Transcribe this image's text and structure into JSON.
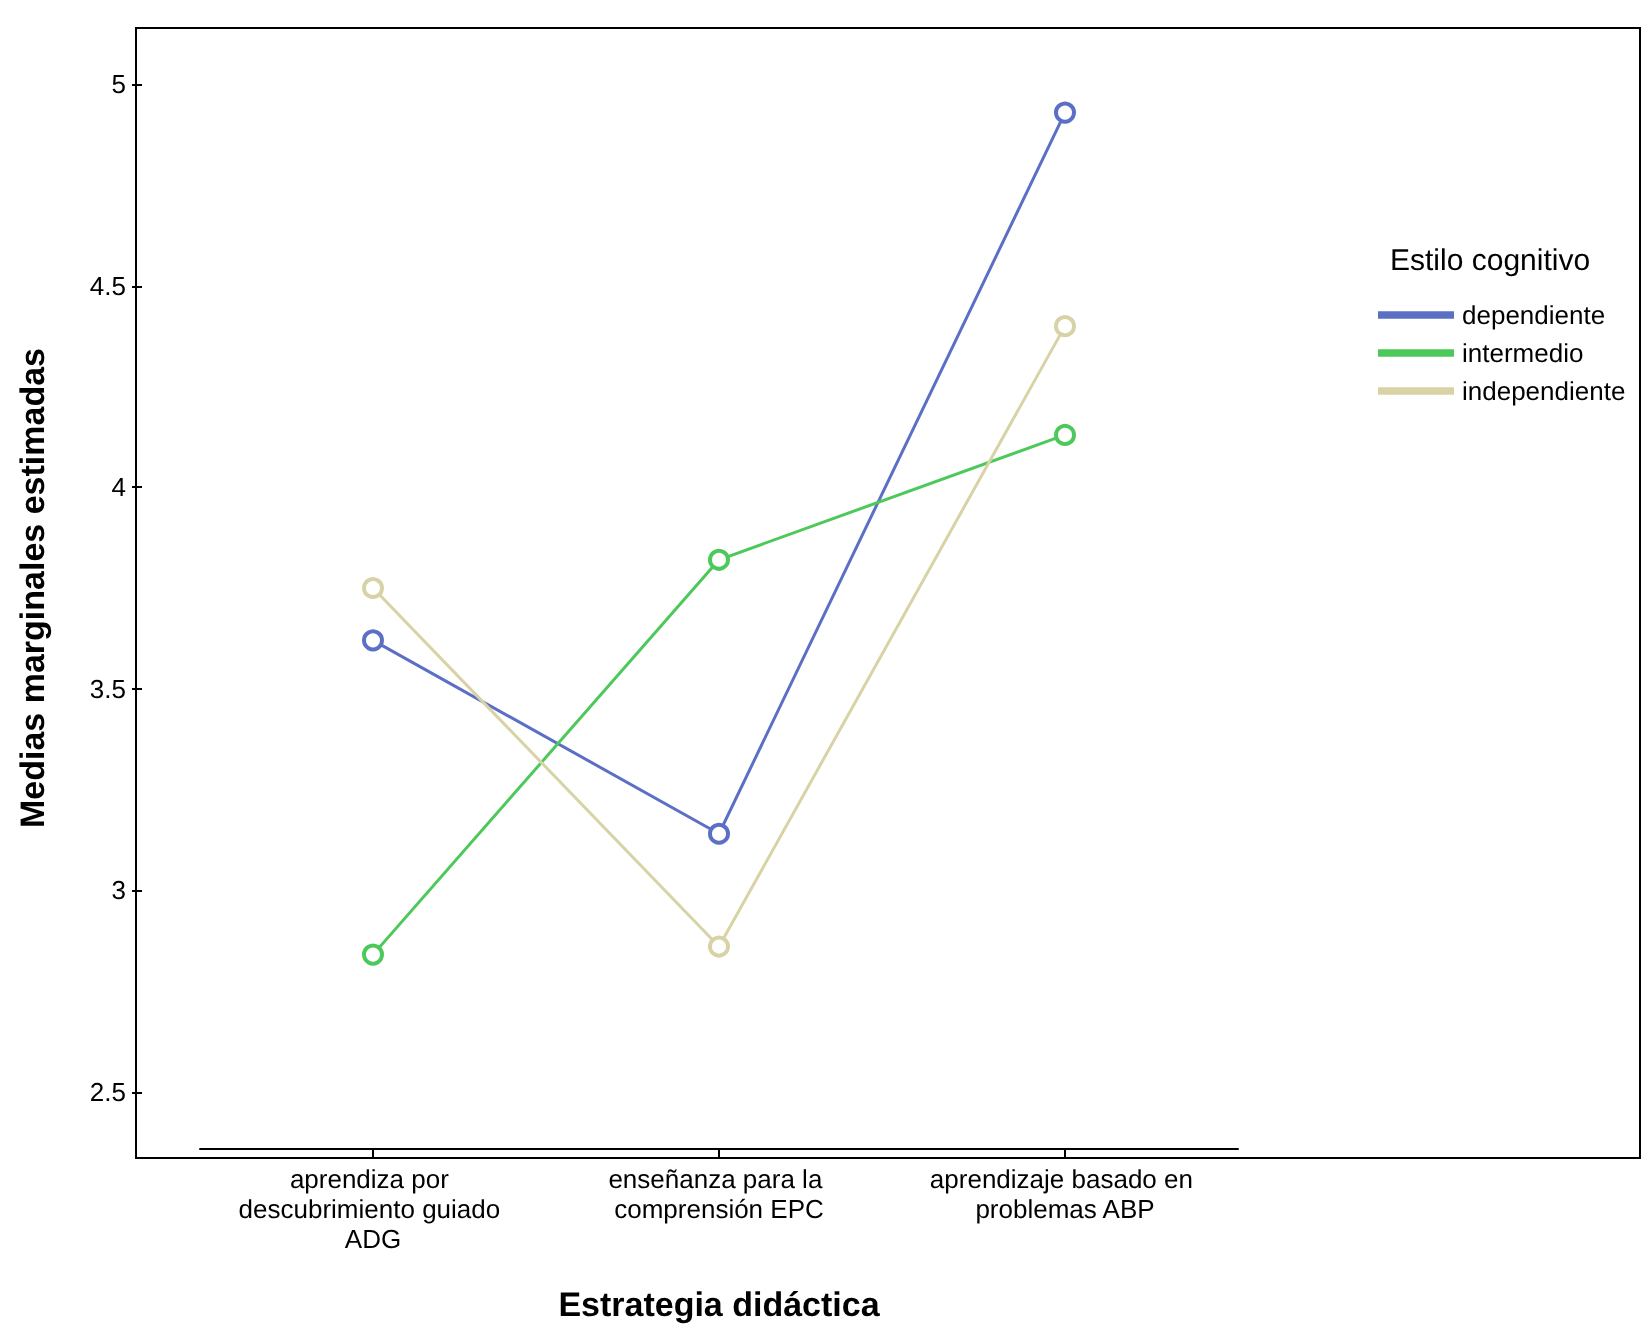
{
  "chart_data": {
    "type": "line",
    "xlabel": "Estrategia didáctica",
    "ylabel": "Medias marginales estimadas",
    "legend_title": "Estilo cognitivo",
    "categories": [
      "aprendiza por descubrimiento guiado ADG",
      "enseñanza para la comprensión EPC",
      "aprendizaje basado en problemas ABP"
    ],
    "series": [
      {
        "name": "dependiente",
        "color": "#5b6fc4",
        "values": [
          3.62,
          3.14,
          4.93
        ]
      },
      {
        "name": "intermedio",
        "color": "#4cc95a",
        "values": [
          2.84,
          3.82,
          4.13
        ]
      },
      {
        "name": "independiente",
        "color": "#d8d3a6",
        "values": [
          3.75,
          2.86,
          4.4
        ]
      }
    ],
    "ylim": [
      2.36,
      5.14
    ],
    "yticks": [
      2.5,
      3,
      3.5,
      4,
      4.5,
      5
    ],
    "grid": false,
    "legend": "right",
    "marker": "circle",
    "line_style": "solid"
  }
}
